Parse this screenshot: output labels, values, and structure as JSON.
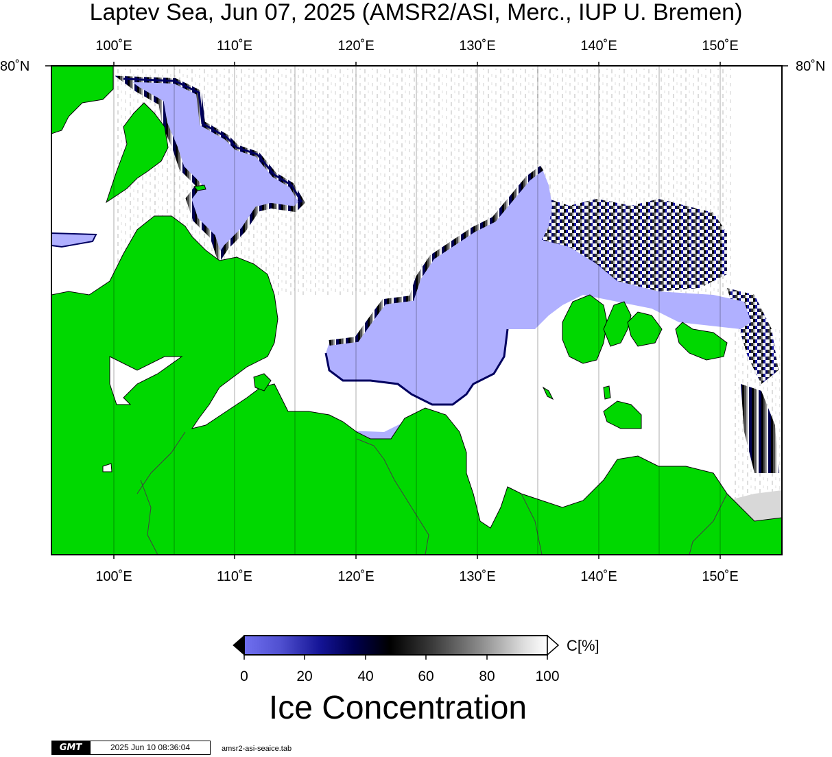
{
  "title": "Laptev Sea, Jun 07, 2025 (AMSR2/ASI, Merc., IUP U. Bremen)",
  "axes": {
    "lon_ticks": [
      "100˚E",
      "110˚E",
      "120˚E",
      "130˚E",
      "140˚E",
      "150˚E"
    ],
    "lat_label_left": "80˚N",
    "lat_label_right": "80˚N"
  },
  "colorbar": {
    "tick_labels": [
      "0",
      "20",
      "40",
      "60",
      "80",
      "100"
    ],
    "unit": "C[%]",
    "label": "Ice Concentration"
  },
  "footer": {
    "logo": "GMT",
    "timestamp": "2025 Jun 10 08:36:04",
    "file": "amsr2-asi-seaice.tab"
  },
  "colors": {
    "land": "#00d800",
    "open_water": "#b0b0ff",
    "ice_full": "#ffffff",
    "low_conc": "#000080"
  }
}
